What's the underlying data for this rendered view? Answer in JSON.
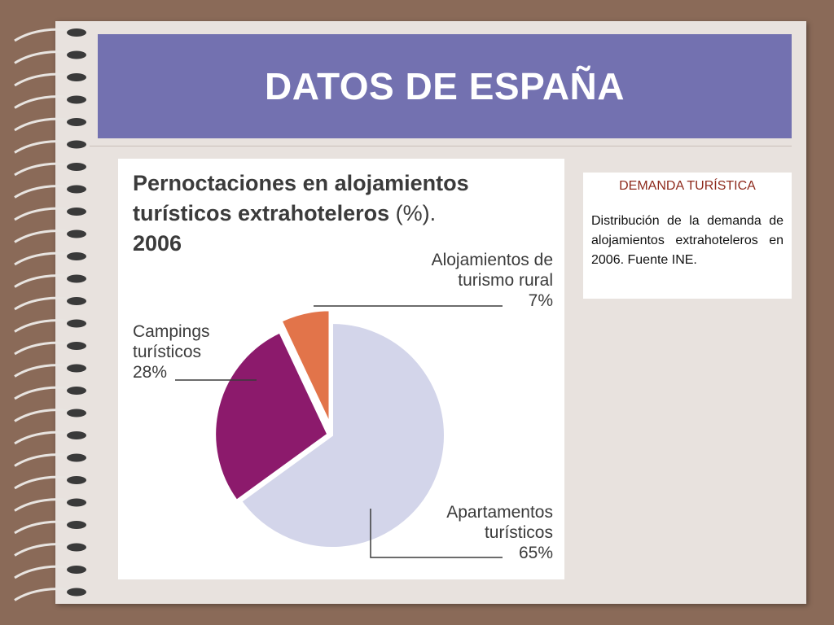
{
  "slide": {
    "title": "DATOS DE ESPAÑA"
  },
  "info_box": {
    "heading": "DEMANDA TURÍSTICA",
    "text_lines": [
      "Distribución de la demanda de alojamientos extrahoteleros en 2006.",
      "Fuente INE."
    ]
  },
  "chart_data": {
    "type": "pie",
    "title_main": "Pernoctaciones en alojamientos turísticos extrahoteleros",
    "title_suffix": "(%).",
    "title_year": "2006",
    "slices": [
      {
        "label_lines": [
          "Apartamentos",
          "turísticos"
        ],
        "value": 65,
        "value_label": "65%",
        "color": "#d3d5ea"
      },
      {
        "label_lines": [
          "Campings",
          "turísticos"
        ],
        "value": 28,
        "value_label": "28%",
        "color": "#8c1a6c"
      },
      {
        "label_lines": [
          "Alojamientos de",
          "turismo rural"
        ],
        "value": 7,
        "value_label": "7%",
        "color": "#e2744a"
      }
    ]
  }
}
